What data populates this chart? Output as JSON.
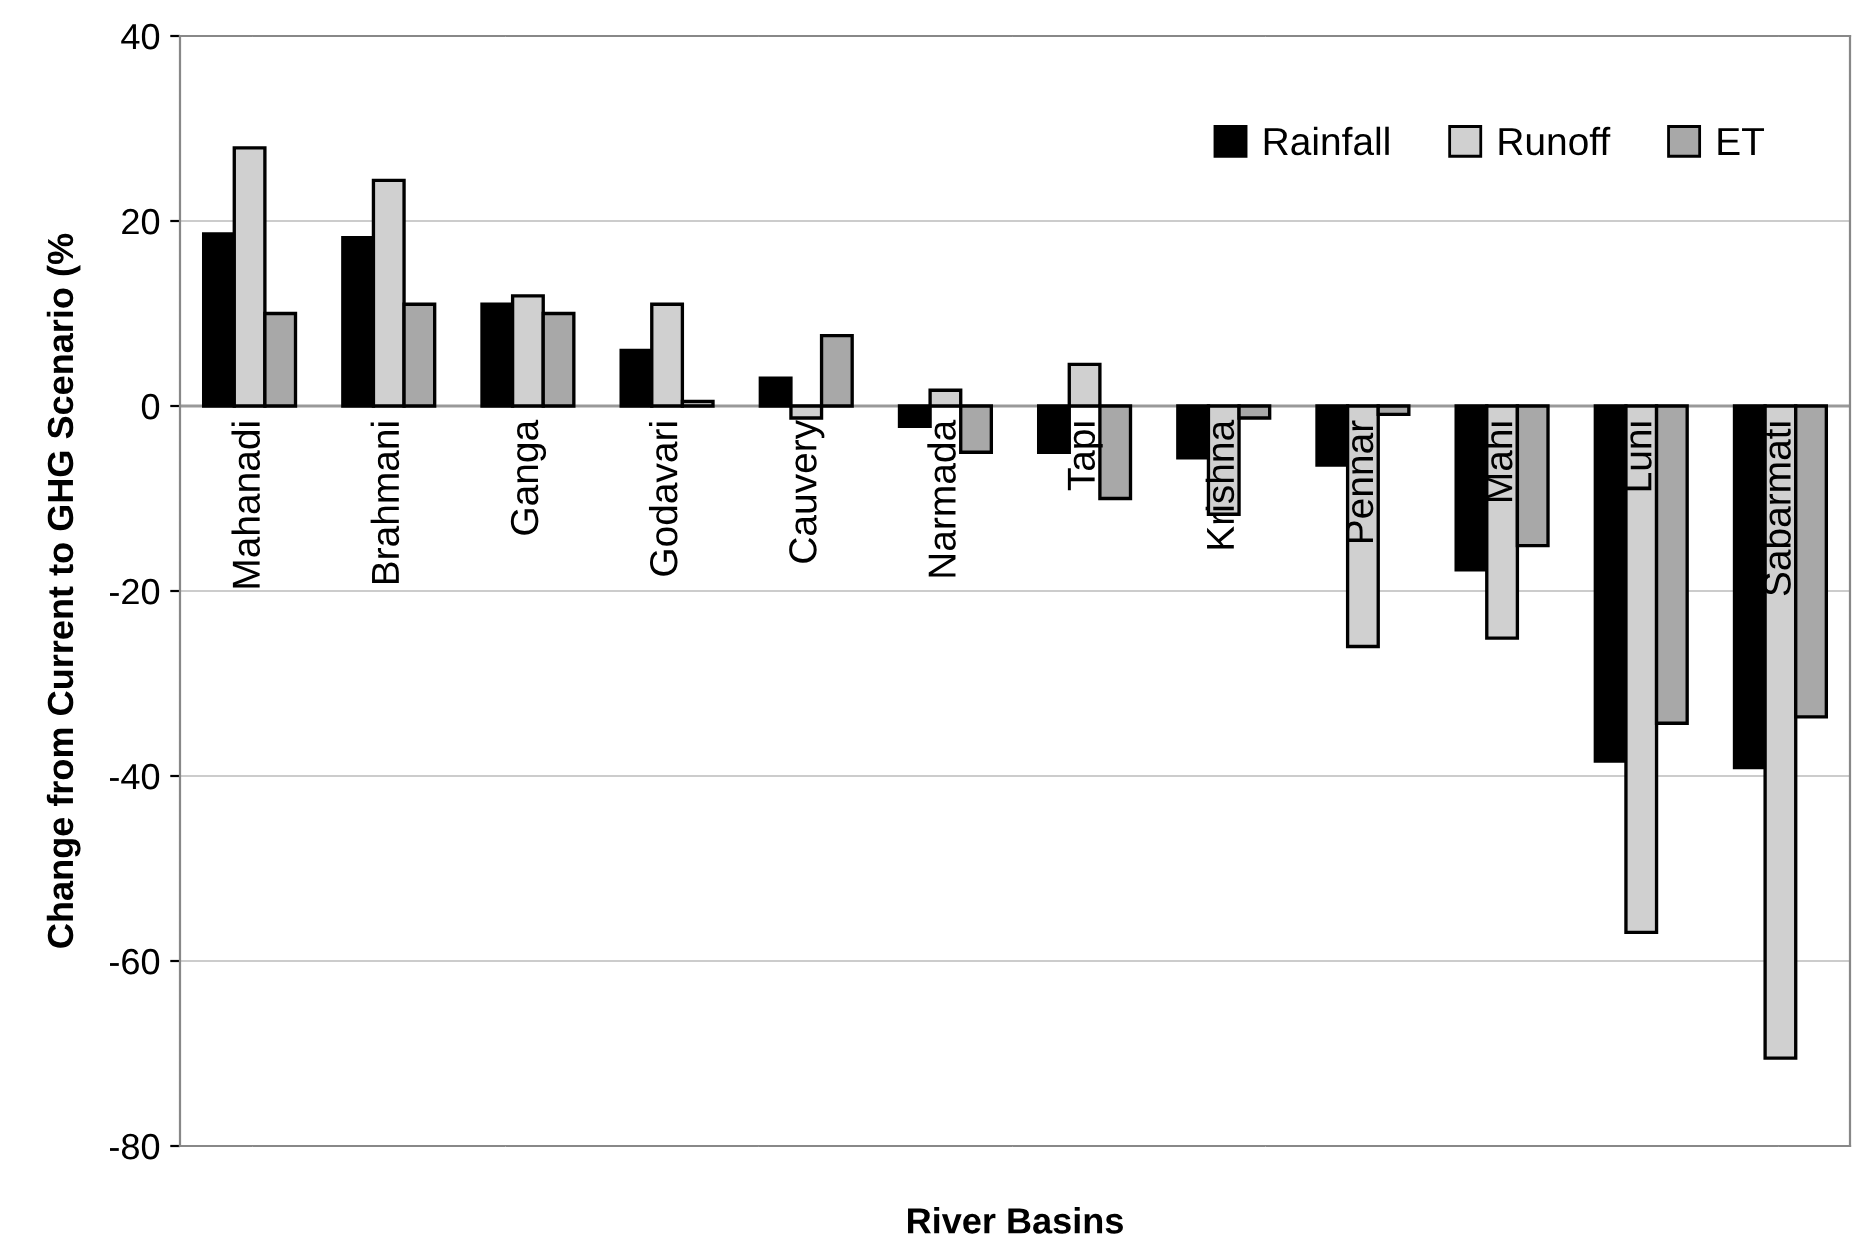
{
  "chart_data": {
    "type": "bar",
    "xlabel": "River Basins",
    "ylabel": "Change from Current to GHG Scenario (%",
    "categories": [
      "Mahanadi",
      "Brahmani",
      "Ganga",
      "Godavari",
      "Cauvery",
      "Narmada",
      "Tapi",
      "Krishna",
      "Pennar",
      "Mahi",
      "Luni",
      "Sabarmati"
    ],
    "series": [
      {
        "name": "Rainfall",
        "color": "#000000",
        "values": [
          18.6,
          18.2,
          11,
          6,
          3,
          -2.2,
          -5,
          -5.6,
          -6.4,
          -17.7,
          -38.4,
          -39.1
        ]
      },
      {
        "name": "Runoff",
        "color": "#d0d0d0",
        "values": [
          27.9,
          24.4,
          11.9,
          11,
          -1.3,
          1.7,
          4.5,
          -11.7,
          -26,
          -25.1,
          -56.9,
          -70.5
        ]
      },
      {
        "name": "ET",
        "color": "#a8a8a8",
        "values": [
          10,
          11,
          10,
          0.5,
          7.6,
          -5,
          -10,
          -1.3,
          -0.9,
          -15.1,
          -34.3,
          -33.6
        ]
      }
    ],
    "ylim": [
      -80,
      40
    ],
    "yticks": [
      -80,
      -60,
      -40,
      -20,
      0,
      20,
      40
    ],
    "grid": "y",
    "legend": "top right"
  }
}
